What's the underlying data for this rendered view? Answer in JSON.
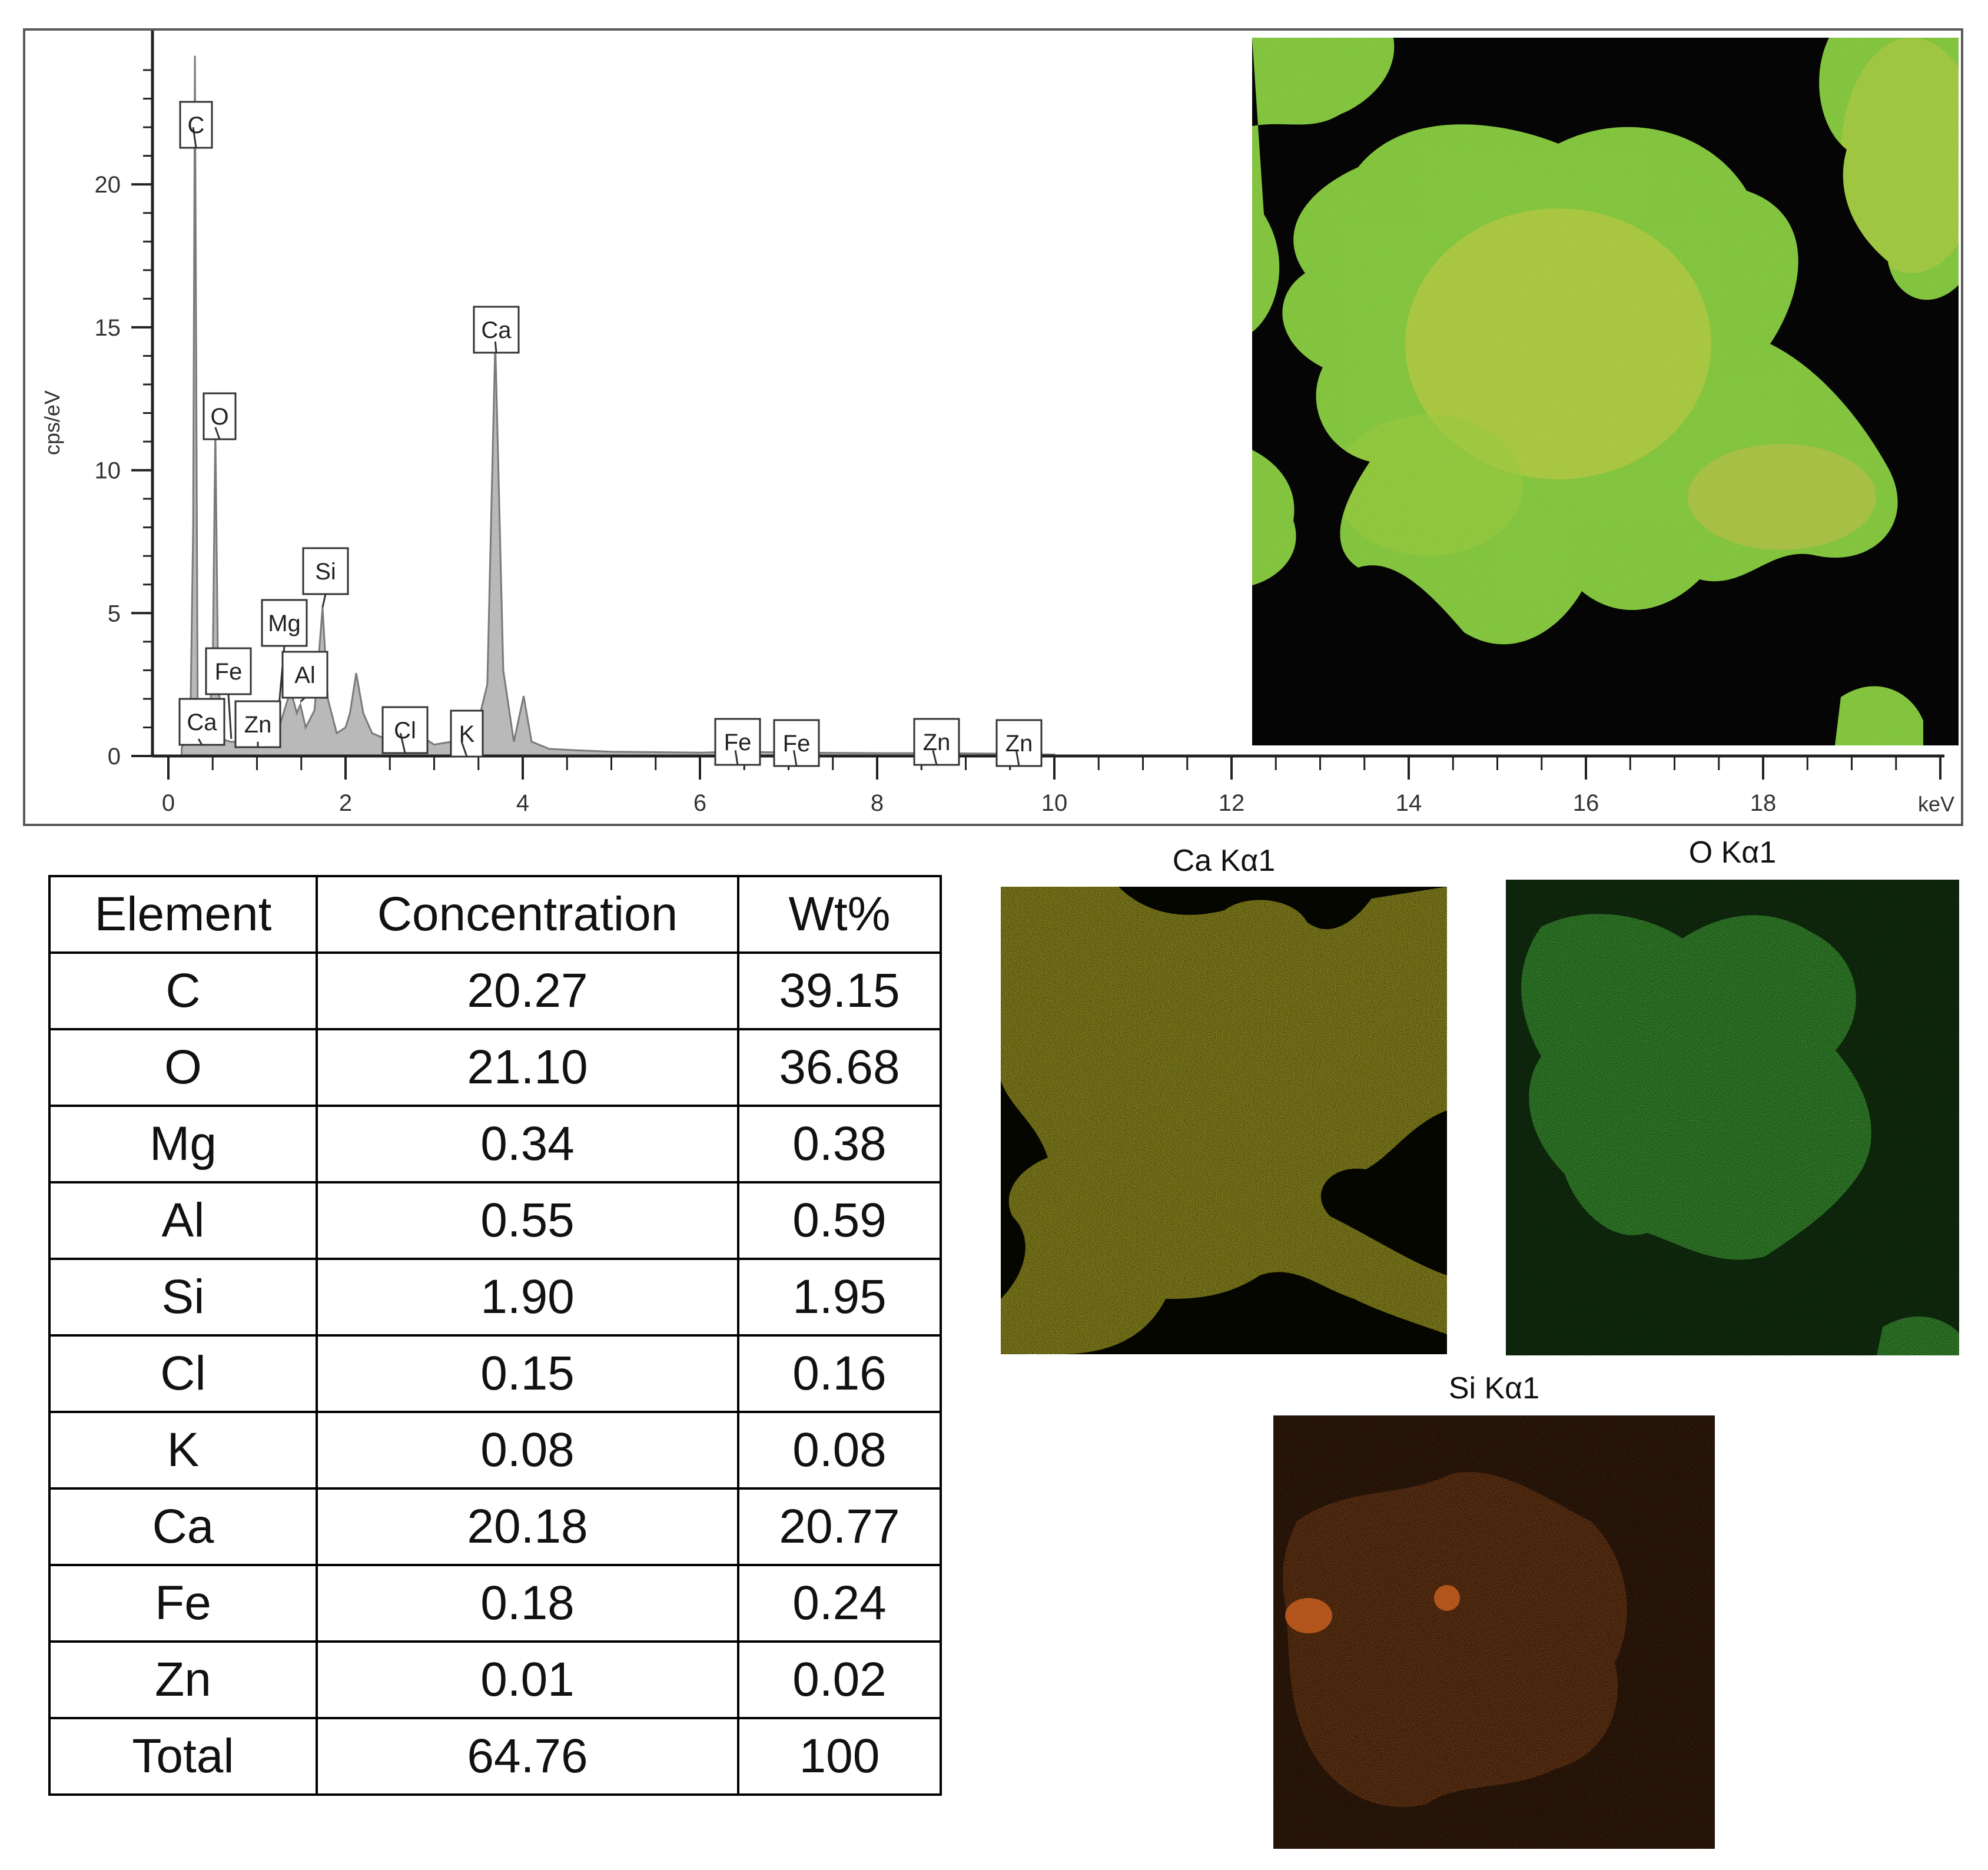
{
  "spectrum": {
    "ylabel": "cps/eV",
    "x_unit_label": "keV",
    "peak_labels": [
      "C",
      "O",
      "Ca",
      "Si",
      "Mg",
      "Fe",
      "Al",
      "Zn",
      "Ca",
      "Cl",
      "K",
      "Fe",
      "Fe",
      "Zn",
      "Zn"
    ]
  },
  "chart_data": [
    {
      "type": "area",
      "title": "",
      "xlabel": "keV",
      "ylabel": "cps/eV",
      "xlim": [
        0,
        20
      ],
      "ylim": [
        0,
        25
      ],
      "x_ticks": [
        0,
        2,
        4,
        6,
        8,
        10,
        12,
        14,
        16,
        18
      ],
      "y_ticks": [
        0,
        5,
        10,
        15,
        20
      ],
      "grid": false,
      "series": [
        {
          "x": [
            0.15,
            0.2,
            0.25,
            0.28,
            0.3,
            0.33,
            0.38,
            0.45,
            0.5,
            0.53,
            0.56,
            0.6,
            0.7,
            0.8,
            0.9,
            1.0,
            1.1,
            1.25,
            1.3,
            1.38,
            1.45,
            1.49,
            1.55,
            1.65,
            1.74,
            1.8,
            1.9,
            2.0,
            2.05,
            2.12,
            2.2,
            2.3,
            2.45,
            2.62,
            2.7,
            2.8,
            3.0,
            3.2,
            3.31,
            3.45,
            3.6,
            3.69,
            3.78,
            3.9,
            4.01,
            4.1,
            4.3,
            4.6,
            5.0,
            6.0,
            6.4,
            7.06,
            8.0,
            8.63,
            9.57,
            10.0
          ],
          "y": [
            0.3,
            0.5,
            1.5,
            8.0,
            24.5,
            2.0,
            0.5,
            0.8,
            3.0,
            11.5,
            3.0,
            0.6,
            0.5,
            0.5,
            0.6,
            0.6,
            0.7,
            1.0,
            1.5,
            2.3,
            1.5,
            1.8,
            1.0,
            1.6,
            5.2,
            2.0,
            0.8,
            1.0,
            1.5,
            2.9,
            1.5,
            0.8,
            0.6,
            0.8,
            0.6,
            0.8,
            0.4,
            0.5,
            0.3,
            0.6,
            2.5,
            14.5,
            3.0,
            0.5,
            2.1,
            0.5,
            0.25,
            0.2,
            0.15,
            0.12,
            0.15,
            0.12,
            0.1,
            0.1,
            0.08,
            0.05
          ]
        }
      ],
      "annotations": [
        {
          "label": "C",
          "x": 0.28,
          "y": 22.0
        },
        {
          "label": "O",
          "x": 0.53,
          "y": 11.5
        },
        {
          "label": "Ca",
          "x": 3.69,
          "y": 14.5
        },
        {
          "label": "Si",
          "x": 1.74,
          "y": 5.2
        },
        {
          "label": "Mg",
          "x": 1.25,
          "y": 1.8
        },
        {
          "label": "Fe",
          "x": 0.71,
          "y": 0.6
        },
        {
          "label": "Al",
          "x": 1.49,
          "y": 1.9
        },
        {
          "label": "Zn",
          "x": 1.01,
          "y": 0.5
        },
        {
          "label": "Ca",
          "x": 0.34,
          "y": 0.6
        },
        {
          "label": "Cl",
          "x": 2.62,
          "y": 0.8
        },
        {
          "label": "K",
          "x": 3.31,
          "y": 0.5
        },
        {
          "label": "Fe",
          "x": 6.4,
          "y": 0.2
        },
        {
          "label": "Fe",
          "x": 7.06,
          "y": 0.2
        },
        {
          "label": "Zn",
          "x": 8.63,
          "y": 0.2
        },
        {
          "label": "Zn",
          "x": 9.57,
          "y": 0.2
        }
      ]
    },
    {
      "type": "table",
      "columns": [
        "Element",
        "Concentration",
        "Wt%"
      ],
      "rows": [
        [
          "C",
          "20.27",
          "39.15"
        ],
        [
          "O",
          "21.10",
          "36.68"
        ],
        [
          "Mg",
          "0.34",
          "0.38"
        ],
        [
          "Al",
          "0.55",
          "0.59"
        ],
        [
          "Si",
          "1.90",
          "1.95"
        ],
        [
          "Cl",
          "0.15",
          "0.16"
        ],
        [
          "K",
          "0.08",
          "0.08"
        ],
        [
          "Ca",
          "20.18",
          "20.77"
        ],
        [
          "Fe",
          "0.18",
          "0.24"
        ],
        [
          "Zn",
          "0.01",
          "0.02"
        ],
        [
          "Total",
          "64.76",
          "100"
        ]
      ]
    }
  ],
  "maps": {
    "composite": {
      "title": "",
      "colors": [
        "#6fd12a",
        "#d8d02a",
        "#c0b040"
      ]
    },
    "ca": {
      "title": "Ca Kα1",
      "color": "#e8e21a"
    },
    "o": {
      "title": "O Kα1",
      "color": "#2fcf1f"
    },
    "si": {
      "title": "Si Kα1",
      "color": "#d8601a"
    }
  }
}
